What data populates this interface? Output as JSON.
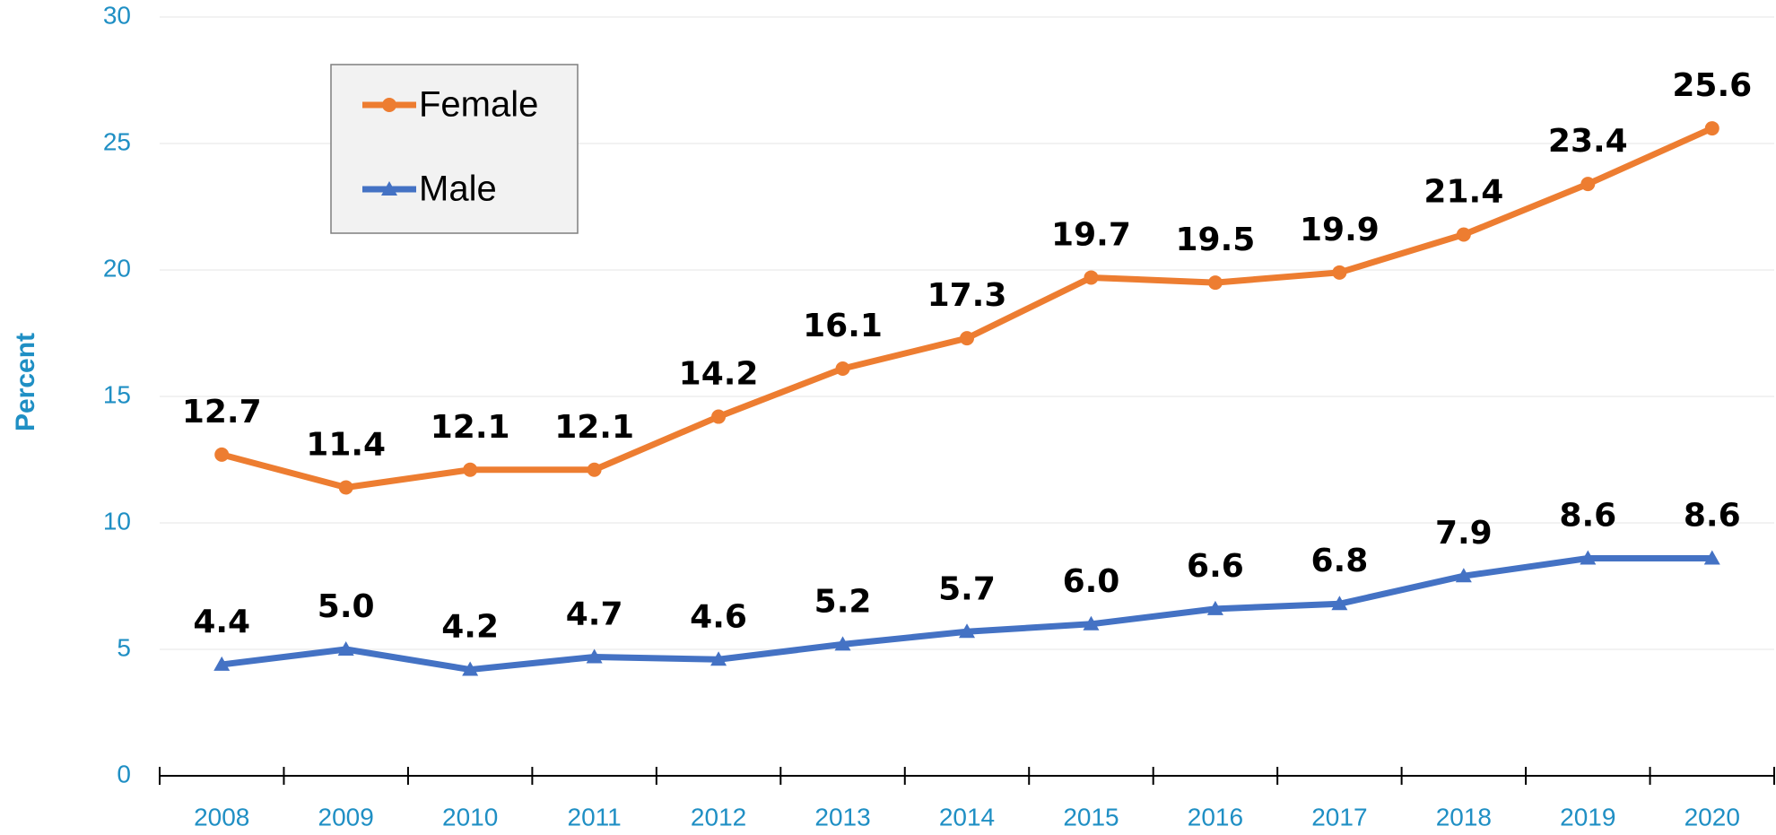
{
  "chart_data": {
    "type": "line",
    "y_label": "Percent",
    "categories": [
      "2008",
      "2009",
      "2010",
      "2011",
      "2012",
      "2013",
      "2014",
      "2015",
      "2016",
      "2017",
      "2018",
      "2019",
      "2020"
    ],
    "series": [
      {
        "name": "Female",
        "color": "#ED7D31",
        "marker": "circle",
        "values": [
          12.7,
          11.4,
          12.1,
          12.1,
          14.2,
          16.1,
          17.3,
          19.7,
          19.5,
          19.9,
          21.4,
          23.4,
          25.6
        ]
      },
      {
        "name": "Male",
        "color": "#4472C4",
        "marker": "triangle",
        "values": [
          4.4,
          5.0,
          4.2,
          4.7,
          4.6,
          5.2,
          5.7,
          6.0,
          6.6,
          6.8,
          7.9,
          8.6,
          8.6
        ],
        "value_labels": [
          "4.4",
          "5.0",
          "4.2",
          "4.7",
          "4.6",
          "5.2",
          "5.7",
          "6.0",
          "6.6",
          "6.8",
          "7.9",
          "8.6",
          "8.6"
        ]
      }
    ],
    "ylim": [
      0,
      30
    ],
    "yticks": [
      0,
      5,
      10,
      15,
      20,
      25,
      30
    ],
    "grid": true,
    "legend": "upper left"
  }
}
